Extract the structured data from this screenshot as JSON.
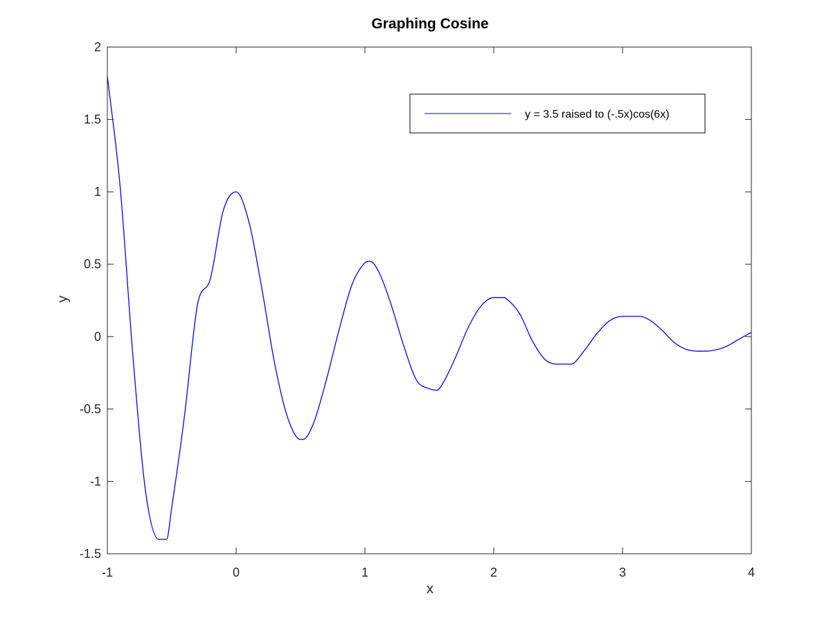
{
  "chart_data": {
    "type": "line",
    "title": "Graphing Cosine",
    "xlabel": "x",
    "ylabel": "y",
    "xlim": [
      -1,
      4
    ],
    "ylim": [
      -1.5,
      2
    ],
    "xticks": [
      -1,
      0,
      1,
      2,
      3,
      4
    ],
    "xtick_labels": [
      "-1",
      "0",
      "1",
      "2",
      "3",
      "4"
    ],
    "yticks": [
      -1.5,
      -1,
      -0.5,
      0,
      0.5,
      1,
      1.5,
      2
    ],
    "ytick_labels": [
      "-1.5",
      "-1",
      "-0.5",
      "0",
      "0.5",
      "1",
      "1.5",
      "2"
    ],
    "grid": false,
    "legend_position": "top-right",
    "series": [
      {
        "name": "y = 3.5 raised to (-.5x)cos(6x)",
        "color": "#0000ff",
        "x": [
          -1,
          -0.9,
          -0.8,
          -0.7,
          -0.6,
          -0.54,
          -0.5,
          -0.4,
          -0.3,
          -0.2,
          -0.1,
          0,
          0.1,
          0.2,
          0.3,
          0.4,
          0.5,
          0.52,
          0.6,
          0.7,
          0.8,
          0.9,
          1,
          1.04,
          1.1,
          1.2,
          1.3,
          1.4,
          1.5,
          1.56,
          1.6,
          1.7,
          1.8,
          1.9,
          2,
          2.08,
          2.1,
          2.2,
          2.3,
          2.4,
          2.5,
          2.6,
          2.7,
          2.8,
          2.9,
          3,
          3.13,
          3.2,
          3.3,
          3.4,
          3.5,
          3.65,
          3.8,
          3.9,
          4
        ],
        "y": [
          1.8,
          1.03,
          -0.15,
          -1.09,
          -1.4,
          -1.4,
          -1.18,
          -0.54,
          0.22,
          0.4,
          0.87,
          1.0,
          0.79,
          0.33,
          -0.19,
          -0.56,
          -0.71,
          -0.71,
          -0.6,
          -0.3,
          0.05,
          0.36,
          0.51,
          0.52,
          0.46,
          0.23,
          -0.06,
          -0.3,
          -0.36,
          -0.37,
          -0.33,
          -0.15,
          0.06,
          0.21,
          0.27,
          0.27,
          0.26,
          0.16,
          -0.03,
          -0.16,
          -0.19,
          -0.19,
          -0.1,
          0.02,
          0.11,
          0.14,
          0.14,
          0.12,
          0.05,
          -0.04,
          -0.09,
          -0.1,
          -0.07,
          -0.02,
          0.03
        ]
      }
    ]
  }
}
